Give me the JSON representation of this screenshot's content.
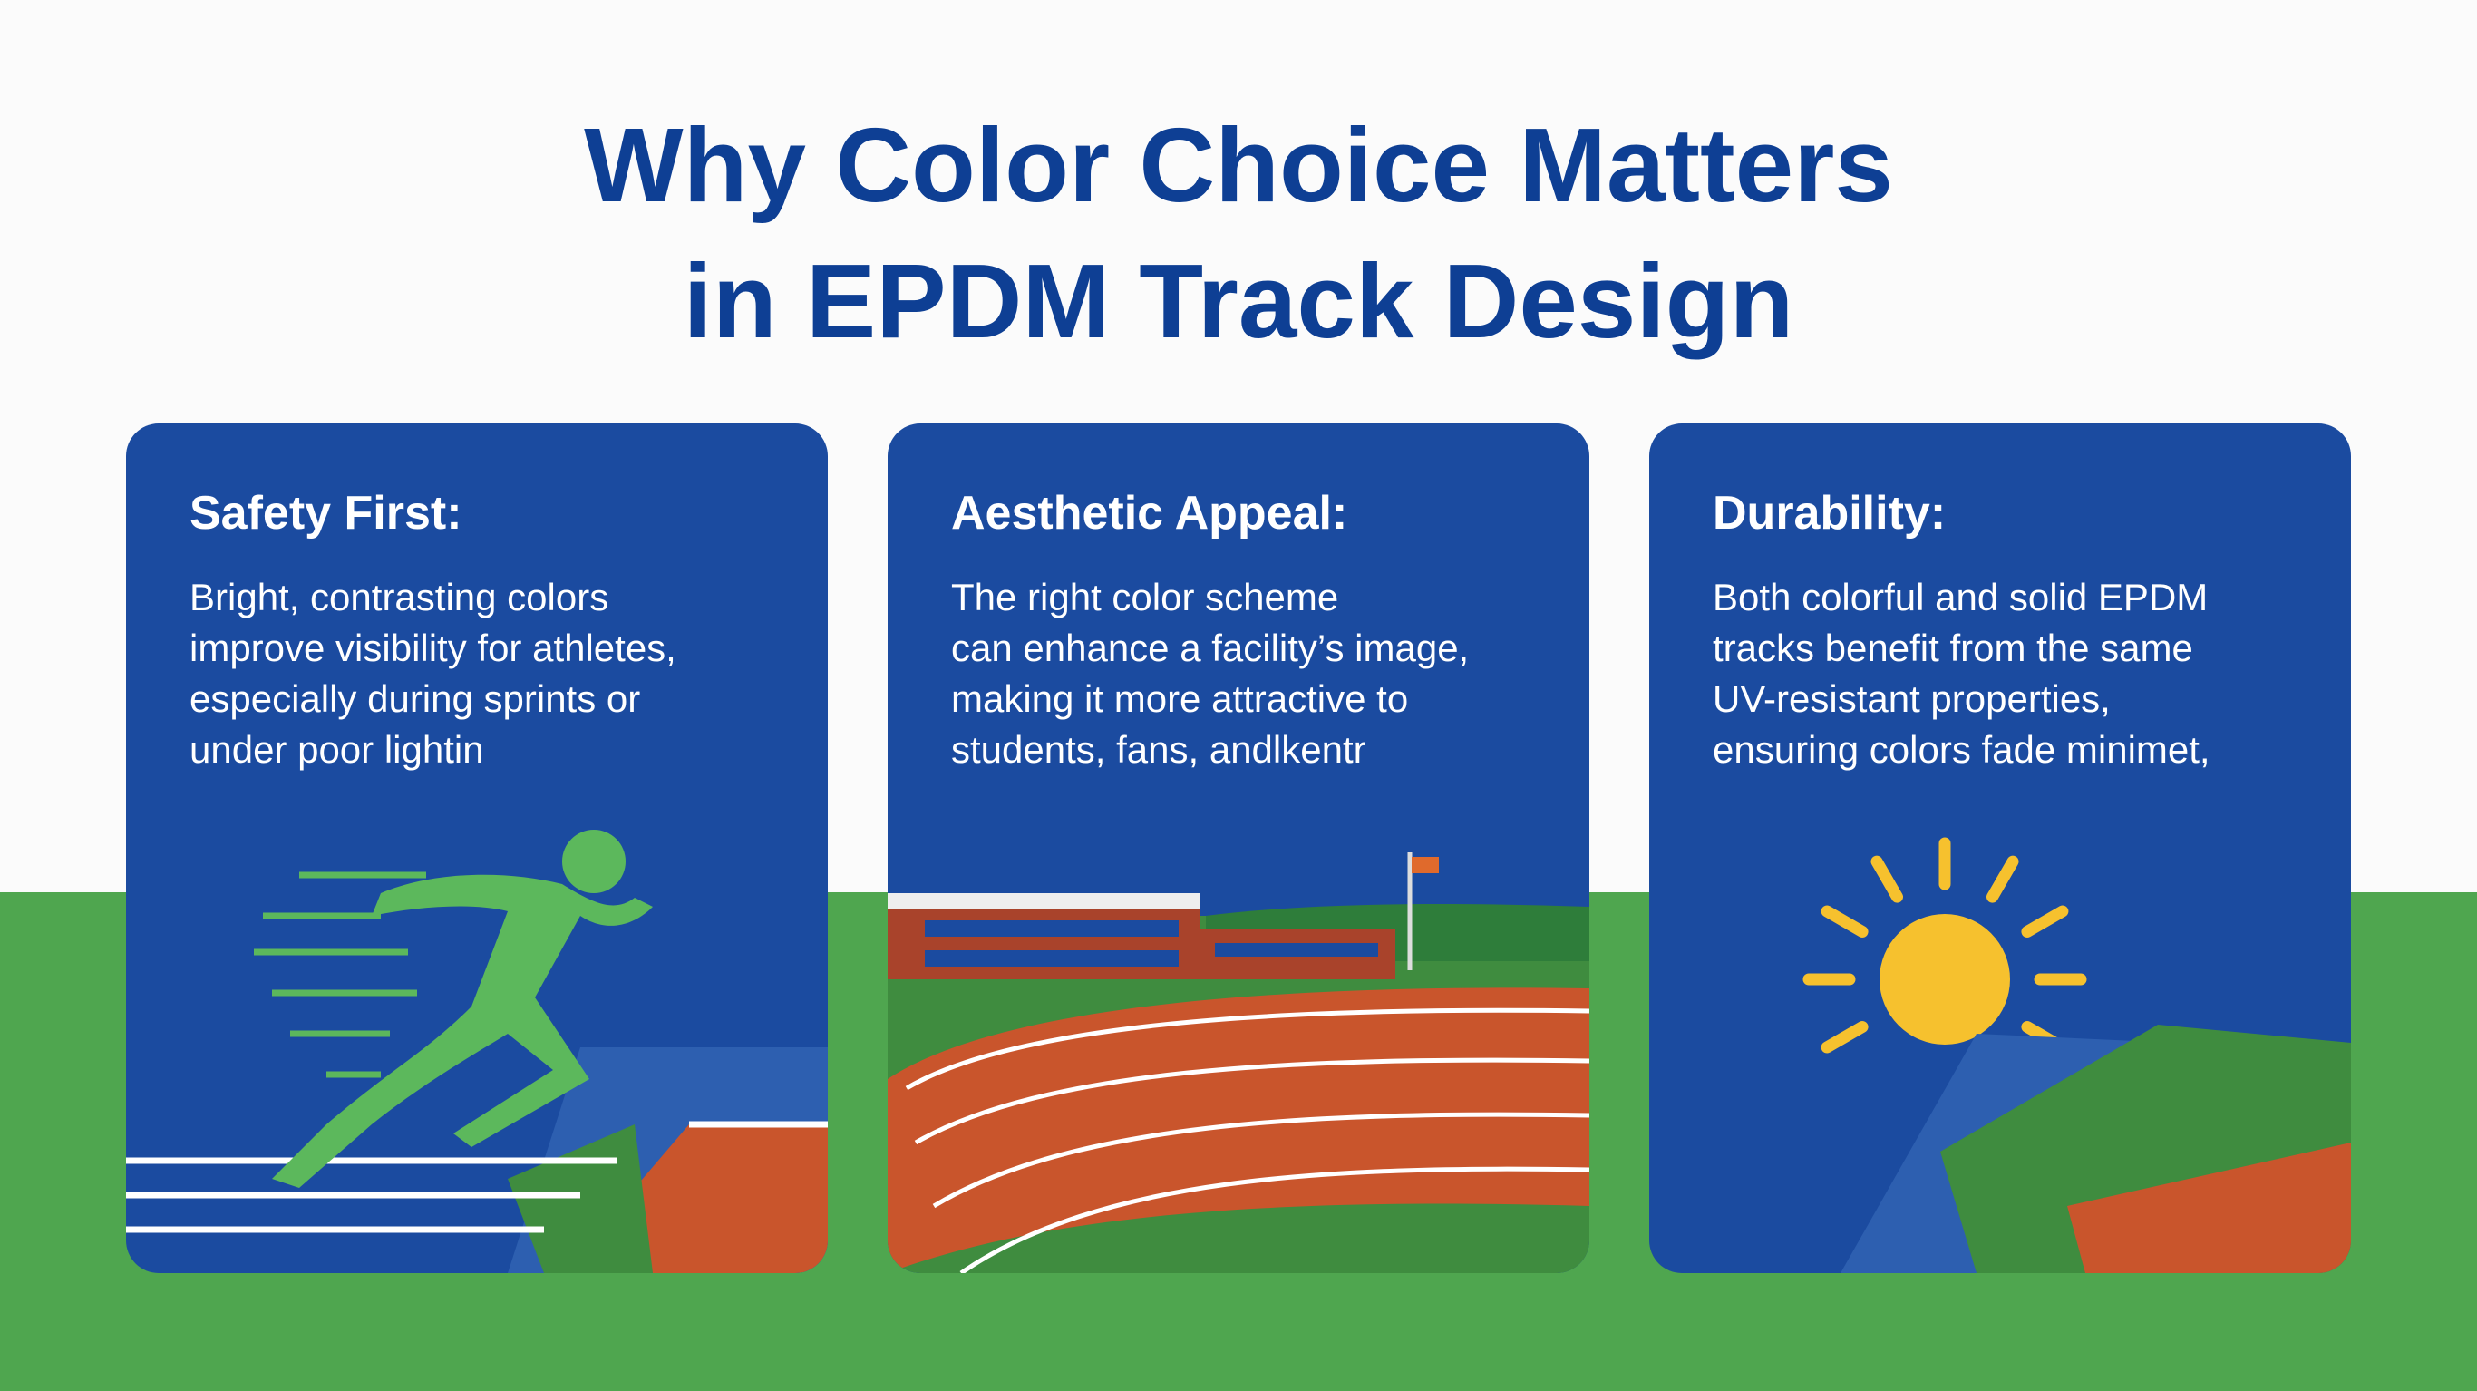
{
  "header": {
    "title": [
      "Why Color Choice Matters",
      "in EPDM Track Design"
    ]
  },
  "cards": [
    {
      "heading": "Safety First:",
      "lines": [
        "Bright, contrasting colors",
        "improve visibility for athletes,",
        "especially during sprints or",
        "under poor lightin"
      ]
    },
    {
      "heading": "Aesthetic Appeal:",
      "lines": [
        "The right color scheme",
        "can enhance a facility’s image,",
        "making it more attractive to",
        "students, fans, andlkentr"
      ]
    },
    {
      "heading": "Durability:",
      "lines": [
        "Both colorful and solid EPDM",
        "tracks benefit from the same",
        "UV-resistant properties,",
        "ensuring colors fade minimet,"
      ]
    }
  ]
}
